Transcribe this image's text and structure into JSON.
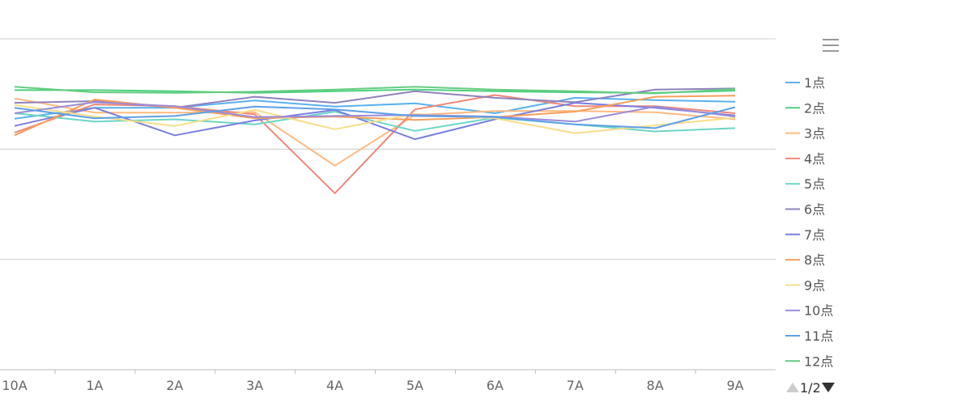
{
  "chart_data": {
    "type": "line",
    "categories": [
      "10A",
      "1A",
      "2A",
      "3A",
      "4A",
      "5A",
      "6A",
      "7A",
      "8A",
      "9A"
    ],
    "series": [
      {
        "name": "1点",
        "color": "#5AB1EF",
        "values": [
          95.5,
          97.5,
          97.5,
          98.8,
          97.7,
          98.3,
          96.5,
          99.3,
          98.9,
          98.6
        ]
      },
      {
        "name": "2点",
        "color": "#4DD07F",
        "values": [
          100.7,
          100.7,
          100.5,
          100.2,
          100.5,
          100.8,
          100.5,
          100.3,
          100.2,
          100.6
        ]
      },
      {
        "name": "3点",
        "color": "#FFB980",
        "values": [
          99.2,
          96.6,
          96.6,
          96.7,
          87.0,
          96.2,
          96.9,
          96.9,
          96.7,
          95.4
        ]
      },
      {
        "name": "4点",
        "color": "#F08878",
        "values": [
          93.0,
          98.1,
          97.8,
          96.3,
          82.0,
          97.2,
          99.8,
          97.8,
          97.8,
          96.5
        ]
      },
      {
        "name": "5点",
        "color": "#6CD6C5",
        "values": [
          96.5,
          95.0,
          95.4,
          94.5,
          96.8,
          93.3,
          95.7,
          94.5,
          93.2,
          93.8
        ]
      },
      {
        "name": "6点",
        "color": "#8F82BC",
        "values": [
          98.4,
          98.7,
          97.5,
          99.5,
          98.4,
          100.5,
          99.3,
          98.5,
          100.8,
          101.0
        ]
      },
      {
        "name": "7点",
        "color": "#7A7FE0",
        "values": [
          94.2,
          97.5,
          92.5,
          95.2,
          97.1,
          91.8,
          95.4,
          98.4,
          97.5,
          96.1
        ]
      },
      {
        "name": "8点",
        "color": "#F5A05C",
        "values": [
          92.5,
          99.0,
          97.5,
          95.6,
          95.9,
          95.3,
          95.8,
          96.8,
          99.5,
          99.7
        ]
      },
      {
        "name": "9点",
        "color": "#F7DE8A",
        "values": [
          98.0,
          95.9,
          94.2,
          97.1,
          93.6,
          96.4,
          95.6,
          92.9,
          94.3,
          95.7
        ]
      },
      {
        "name": "10点",
        "color": "#9C8BD8",
        "values": [
          96.5,
          98.5,
          97.8,
          95.8,
          96.0,
          96.2,
          95.9,
          95.0,
          97.7,
          95.9
        ]
      },
      {
        "name": "11点",
        "color": "#5DA0E8",
        "values": [
          97.5,
          95.6,
          96.0,
          97.7,
          97.2,
          96.0,
          95.8,
          94.5,
          93.8,
          97.6
        ]
      },
      {
        "name": "12点",
        "color": "#65CC80",
        "values": [
          101.3,
          100.3,
          100.2,
          100.4,
          100.8,
          101.3,
          100.8,
          100.5,
          100.1,
          100.9
        ]
      }
    ],
    "ylim": [
      50,
      110
    ],
    "ystep": 10,
    "show_y_tick_labels": false,
    "grid": true,
    "legend": {
      "position": "right",
      "page": "1/2"
    }
  },
  "ui": {
    "menu_icon": "hamburger-menu-icon",
    "legend_prev_icon": "triangle-up-icon",
    "legend_next_icon": "triangle-down-icon"
  }
}
